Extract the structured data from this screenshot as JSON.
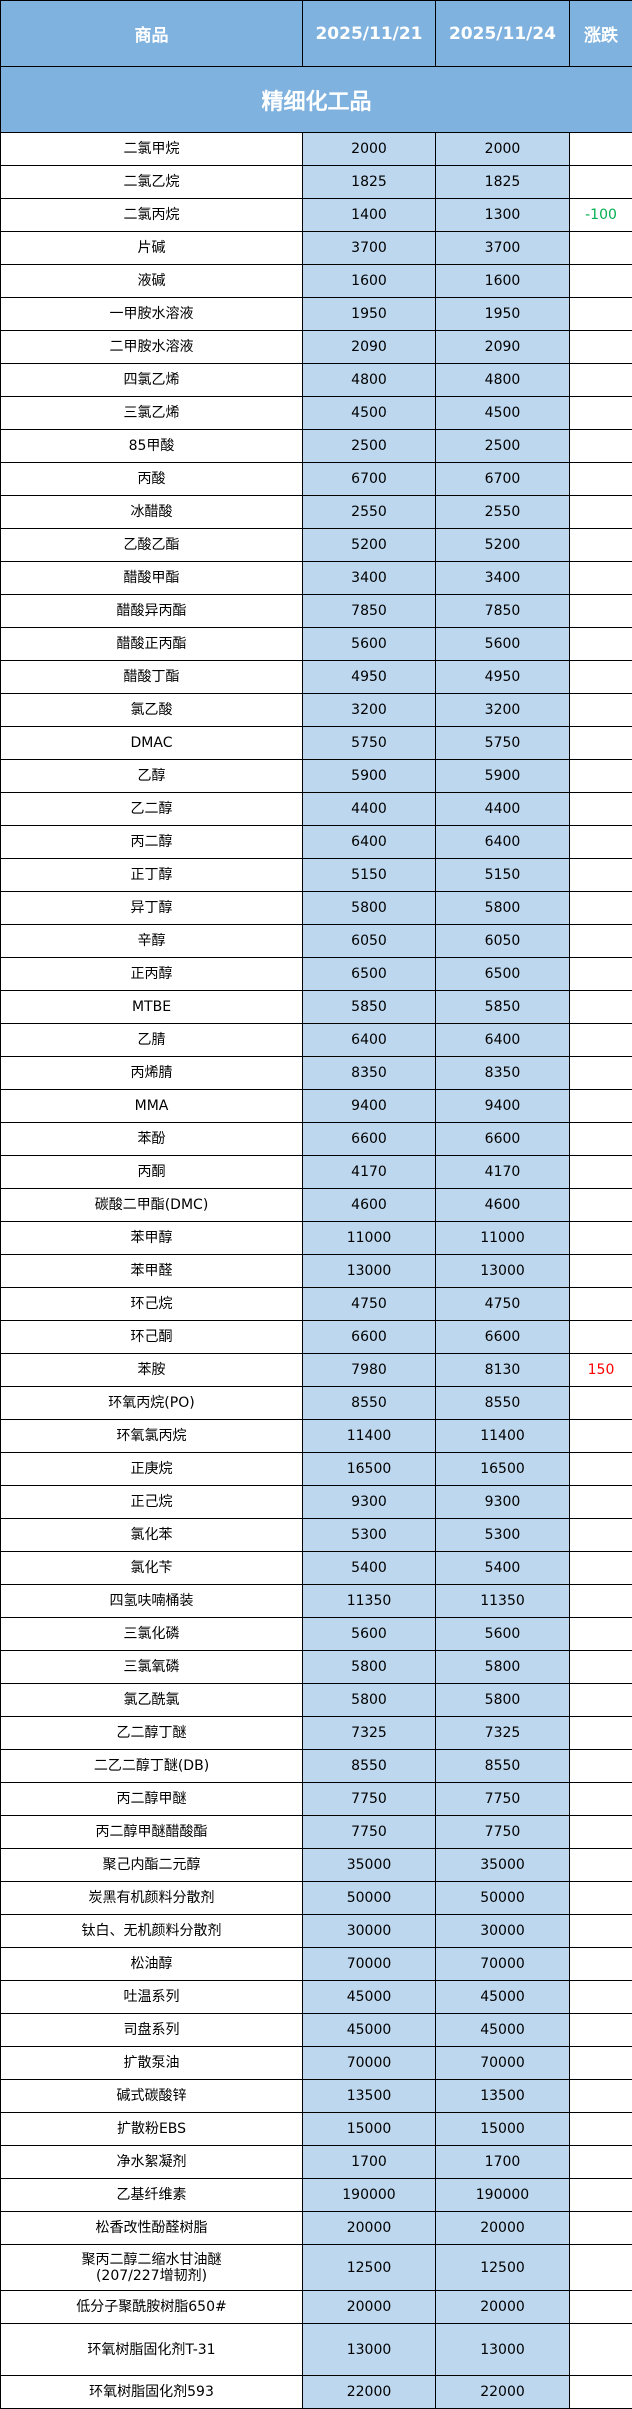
{
  "header": {
    "product": "商品",
    "date1": "2025/11/21",
    "date2": "2025/11/24",
    "change": "涨跌"
  },
  "section_title": "精细化工品",
  "colors": {
    "header_bg": "#7fb2de",
    "price_bg": "#bdd7ee",
    "up": "#ff0000",
    "down": "#00b050"
  },
  "rows": [
    {
      "name": "二氯甲烷",
      "p1": "2000",
      "p2": "2000",
      "change": ""
    },
    {
      "name": "二氯乙烷",
      "p1": "1825",
      "p2": "1825",
      "change": ""
    },
    {
      "name": "二氯丙烷",
      "p1": "1400",
      "p2": "1300",
      "change": "-100",
      "dir": "down"
    },
    {
      "name": "片碱",
      "p1": "3700",
      "p2": "3700",
      "change": ""
    },
    {
      "name": "液碱",
      "p1": "1600",
      "p2": "1600",
      "change": ""
    },
    {
      "name": "一甲胺水溶液",
      "p1": "1950",
      "p2": "1950",
      "change": ""
    },
    {
      "name": "二甲胺水溶液",
      "p1": "2090",
      "p2": "2090",
      "change": ""
    },
    {
      "name": "四氯乙烯",
      "p1": "4800",
      "p2": "4800",
      "change": ""
    },
    {
      "name": "三氯乙烯",
      "p1": "4500",
      "p2": "4500",
      "change": ""
    },
    {
      "name": "85甲酸",
      "p1": "2500",
      "p2": "2500",
      "change": ""
    },
    {
      "name": "丙酸",
      "p1": "6700",
      "p2": "6700",
      "change": ""
    },
    {
      "name": "冰醋酸",
      "p1": "2550",
      "p2": "2550",
      "change": ""
    },
    {
      "name": "乙酸乙酯",
      "p1": "5200",
      "p2": "5200",
      "change": ""
    },
    {
      "name": "醋酸甲酯",
      "p1": "3400",
      "p2": "3400",
      "change": ""
    },
    {
      "name": "醋酸异丙酯",
      "p1": "7850",
      "p2": "7850",
      "change": ""
    },
    {
      "name": "醋酸正丙酯",
      "p1": "5600",
      "p2": "5600",
      "change": ""
    },
    {
      "name": "醋酸丁酯",
      "p1": "4950",
      "p2": "4950",
      "change": ""
    },
    {
      "name": "氯乙酸",
      "p1": "3200",
      "p2": "3200",
      "change": ""
    },
    {
      "name": "DMAC",
      "p1": "5750",
      "p2": "5750",
      "change": ""
    },
    {
      "name": "乙醇",
      "p1": "5900",
      "p2": "5900",
      "change": ""
    },
    {
      "name": "乙二醇",
      "p1": "4400",
      "p2": "4400",
      "change": ""
    },
    {
      "name": "丙二醇",
      "p1": "6400",
      "p2": "6400",
      "change": ""
    },
    {
      "name": "正丁醇",
      "p1": "5150",
      "p2": "5150",
      "change": ""
    },
    {
      "name": "异丁醇",
      "p1": "5800",
      "p2": "5800",
      "change": ""
    },
    {
      "name": "辛醇",
      "p1": "6050",
      "p2": "6050",
      "change": ""
    },
    {
      "name": "正丙醇",
      "p1": "6500",
      "p2": "6500",
      "change": ""
    },
    {
      "name": "MTBE",
      "p1": "5850",
      "p2": "5850",
      "change": ""
    },
    {
      "name": "乙腈",
      "p1": "6400",
      "p2": "6400",
      "change": ""
    },
    {
      "name": "丙烯腈",
      "p1": "8350",
      "p2": "8350",
      "change": ""
    },
    {
      "name": "MMA",
      "p1": "9400",
      "p2": "9400",
      "change": ""
    },
    {
      "name": "苯酚",
      "p1": "6600",
      "p2": "6600",
      "change": ""
    },
    {
      "name": "丙酮",
      "p1": "4170",
      "p2": "4170",
      "change": ""
    },
    {
      "name": "碳酸二甲酯(DMC)",
      "p1": "4600",
      "p2": "4600",
      "change": ""
    },
    {
      "name": "苯甲醇",
      "p1": "11000",
      "p2": "11000",
      "change": ""
    },
    {
      "name": "苯甲醛",
      "p1": "13000",
      "p2": "13000",
      "change": ""
    },
    {
      "name": "环己烷",
      "p1": "4750",
      "p2": "4750",
      "change": ""
    },
    {
      "name": "环己酮",
      "p1": "6600",
      "p2": "6600",
      "change": ""
    },
    {
      "name": "苯胺",
      "p1": "7980",
      "p2": "8130",
      "change": "150",
      "dir": "up"
    },
    {
      "name": "环氧丙烷(PO)",
      "p1": "8550",
      "p2": "8550",
      "change": ""
    },
    {
      "name": "环氧氯丙烷",
      "p1": "11400",
      "p2": "11400",
      "change": ""
    },
    {
      "name": "正庚烷",
      "p1": "16500",
      "p2": "16500",
      "change": ""
    },
    {
      "name": "正己烷",
      "p1": "9300",
      "p2": "9300",
      "change": ""
    },
    {
      "name": "氯化苯",
      "p1": "5300",
      "p2": "5300",
      "change": ""
    },
    {
      "name": "氯化苄",
      "p1": "5400",
      "p2": "5400",
      "change": ""
    },
    {
      "name": "四氢呋喃桶装",
      "p1": "11350",
      "p2": "11350",
      "change": ""
    },
    {
      "name": "三氯化磷",
      "p1": "5600",
      "p2": "5600",
      "change": ""
    },
    {
      "name": "三氯氧磷",
      "p1": "5800",
      "p2": "5800",
      "change": ""
    },
    {
      "name": "氯乙酰氯",
      "p1": "5800",
      "p2": "5800",
      "change": ""
    },
    {
      "name": "乙二醇丁醚",
      "p1": "7325",
      "p2": "7325",
      "change": ""
    },
    {
      "name": "二乙二醇丁醚(DB)",
      "p1": "8550",
      "p2": "8550",
      "change": ""
    },
    {
      "name": "丙二醇甲醚",
      "p1": "7750",
      "p2": "7750",
      "change": ""
    },
    {
      "name": "丙二醇甲醚醋酸酯",
      "p1": "7750",
      "p2": "7750",
      "change": ""
    },
    {
      "name": "聚己内酯二元醇",
      "p1": "35000",
      "p2": "35000",
      "change": ""
    },
    {
      "name": "炭黑有机颜料分散剂",
      "p1": "50000",
      "p2": "50000",
      "change": ""
    },
    {
      "name": "钛白、无机颜料分散剂",
      "p1": "30000",
      "p2": "30000",
      "change": ""
    },
    {
      "name": "松油醇",
      "p1": "70000",
      "p2": "70000",
      "change": ""
    },
    {
      "name": "吐温系列",
      "p1": "45000",
      "p2": "45000",
      "change": ""
    },
    {
      "name": "司盘系列",
      "p1": "45000",
      "p2": "45000",
      "change": ""
    },
    {
      "name": "扩散泵油",
      "p1": "70000",
      "p2": "70000",
      "change": ""
    },
    {
      "name": "碱式碳酸锌",
      "p1": "13500",
      "p2": "13500",
      "change": ""
    },
    {
      "name": "扩散粉EBS",
      "p1": "15000",
      "p2": "15000",
      "change": ""
    },
    {
      "name": "净水絮凝剂",
      "p1": "1700",
      "p2": "1700",
      "change": ""
    },
    {
      "name": "乙基纤维素",
      "p1": "190000",
      "p2": "190000",
      "change": ""
    },
    {
      "name": "松香改性酚醛树脂",
      "p1": "20000",
      "p2": "20000",
      "change": ""
    },
    {
      "name": "聚丙二醇二缩水甘油醚\n(207/227增韧剂)",
      "p1": "12500",
      "p2": "12500",
      "change": ""
    },
    {
      "name": "低分子聚酰胺树脂650#",
      "p1": "20000",
      "p2": "20000",
      "change": ""
    },
    {
      "name": "环氧树脂固化剂T-31",
      "p1": "13000",
      "p2": "13000",
      "change": ""
    },
    {
      "name": "环氧树脂固化剂593",
      "p1": "22000",
      "p2": "22000",
      "change": ""
    }
  ]
}
